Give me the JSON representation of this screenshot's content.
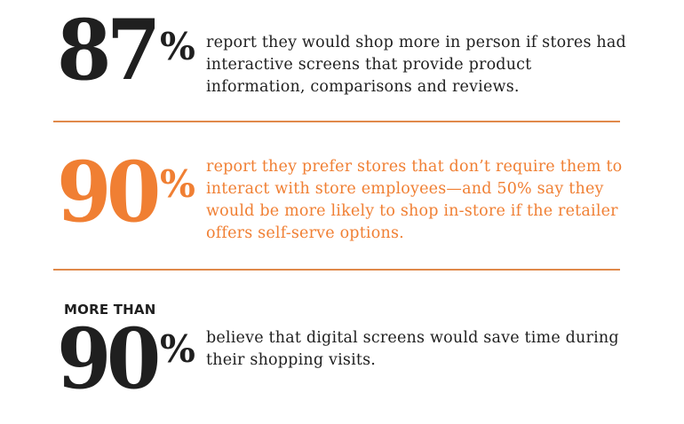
{
  "colors": {
    "dark": "#1f1f1f",
    "accent": "#f07f33",
    "divider": "#e0894a"
  },
  "stats": [
    {
      "prefix": "",
      "number": "87",
      "percent_sign": "%",
      "description": "report they would shop more in person if stores had interactive screens that provide product information, comparisons and reviews."
    },
    {
      "prefix": "",
      "number": "90",
      "percent_sign": "%",
      "description": "report they prefer stores that don’t require them to interact with store employees—and 50% say they would be more likely to shop in-store if the retailer offers self-serve options."
    },
    {
      "prefix": "MORE THAN",
      "number": "90",
      "percent_sign": "%",
      "description": "believe that digital screens would save time during their shopping visits."
    }
  ]
}
